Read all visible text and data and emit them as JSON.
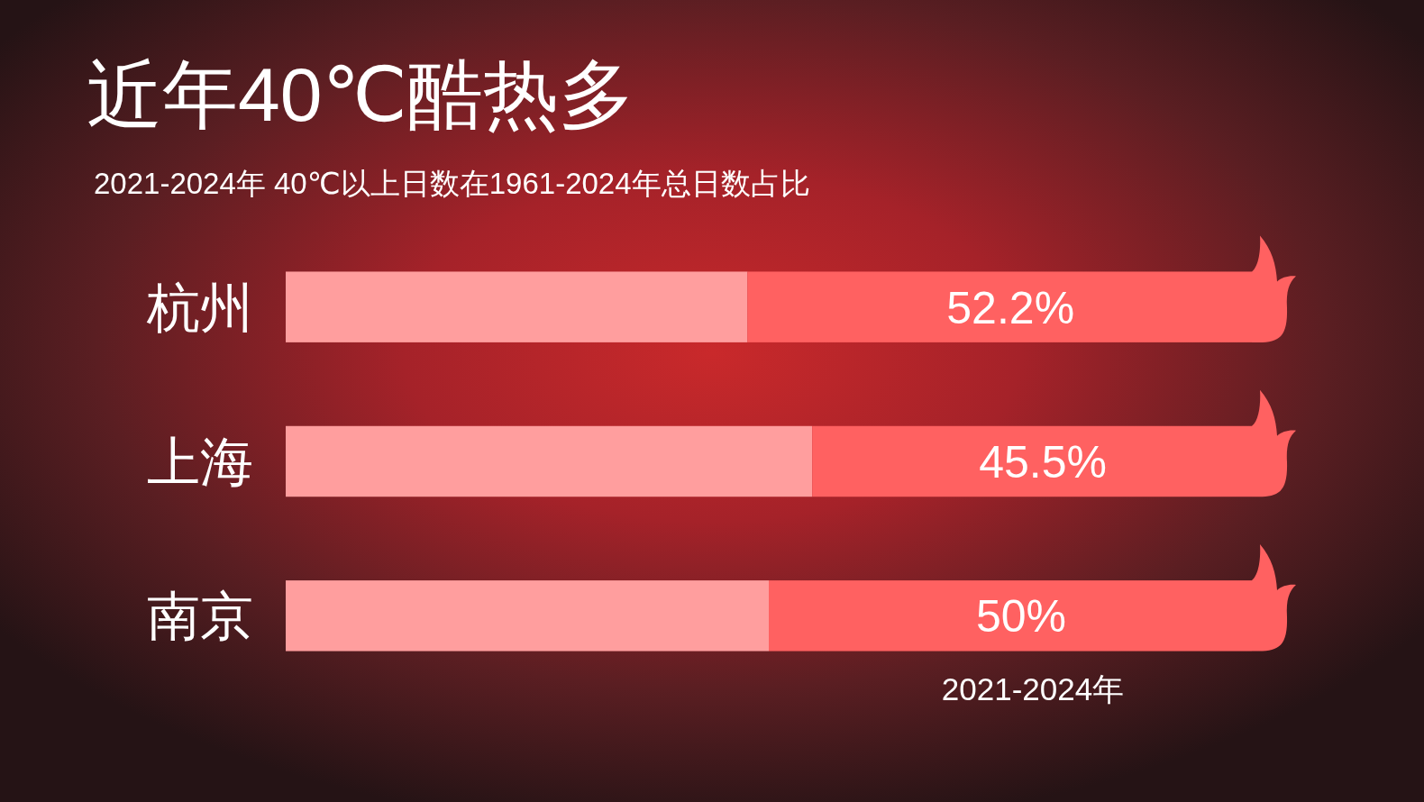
{
  "chart_data": {
    "type": "bar",
    "orientation": "horizontal",
    "stacked": true,
    "title": "近年40℃酷热多",
    "subtitle": "2021-2024年 40℃以上日数在1961-2024年总日数占比",
    "categories": [
      "杭州",
      "上海",
      "南京"
    ],
    "series": [
      {
        "color": "#ff9e9e",
        "values": [
          47.8,
          54.5,
          50
        ]
      },
      {
        "name": "2021-2024年",
        "color": "#ff6161",
        "values": [
          52.2,
          45.5,
          50
        ],
        "value_labels": [
          "52.2%",
          "45.5%",
          "50%"
        ]
      }
    ],
    "xlim": [
      0,
      100
    ],
    "tick_labels": "y",
    "legend": "bottom right"
  }
}
